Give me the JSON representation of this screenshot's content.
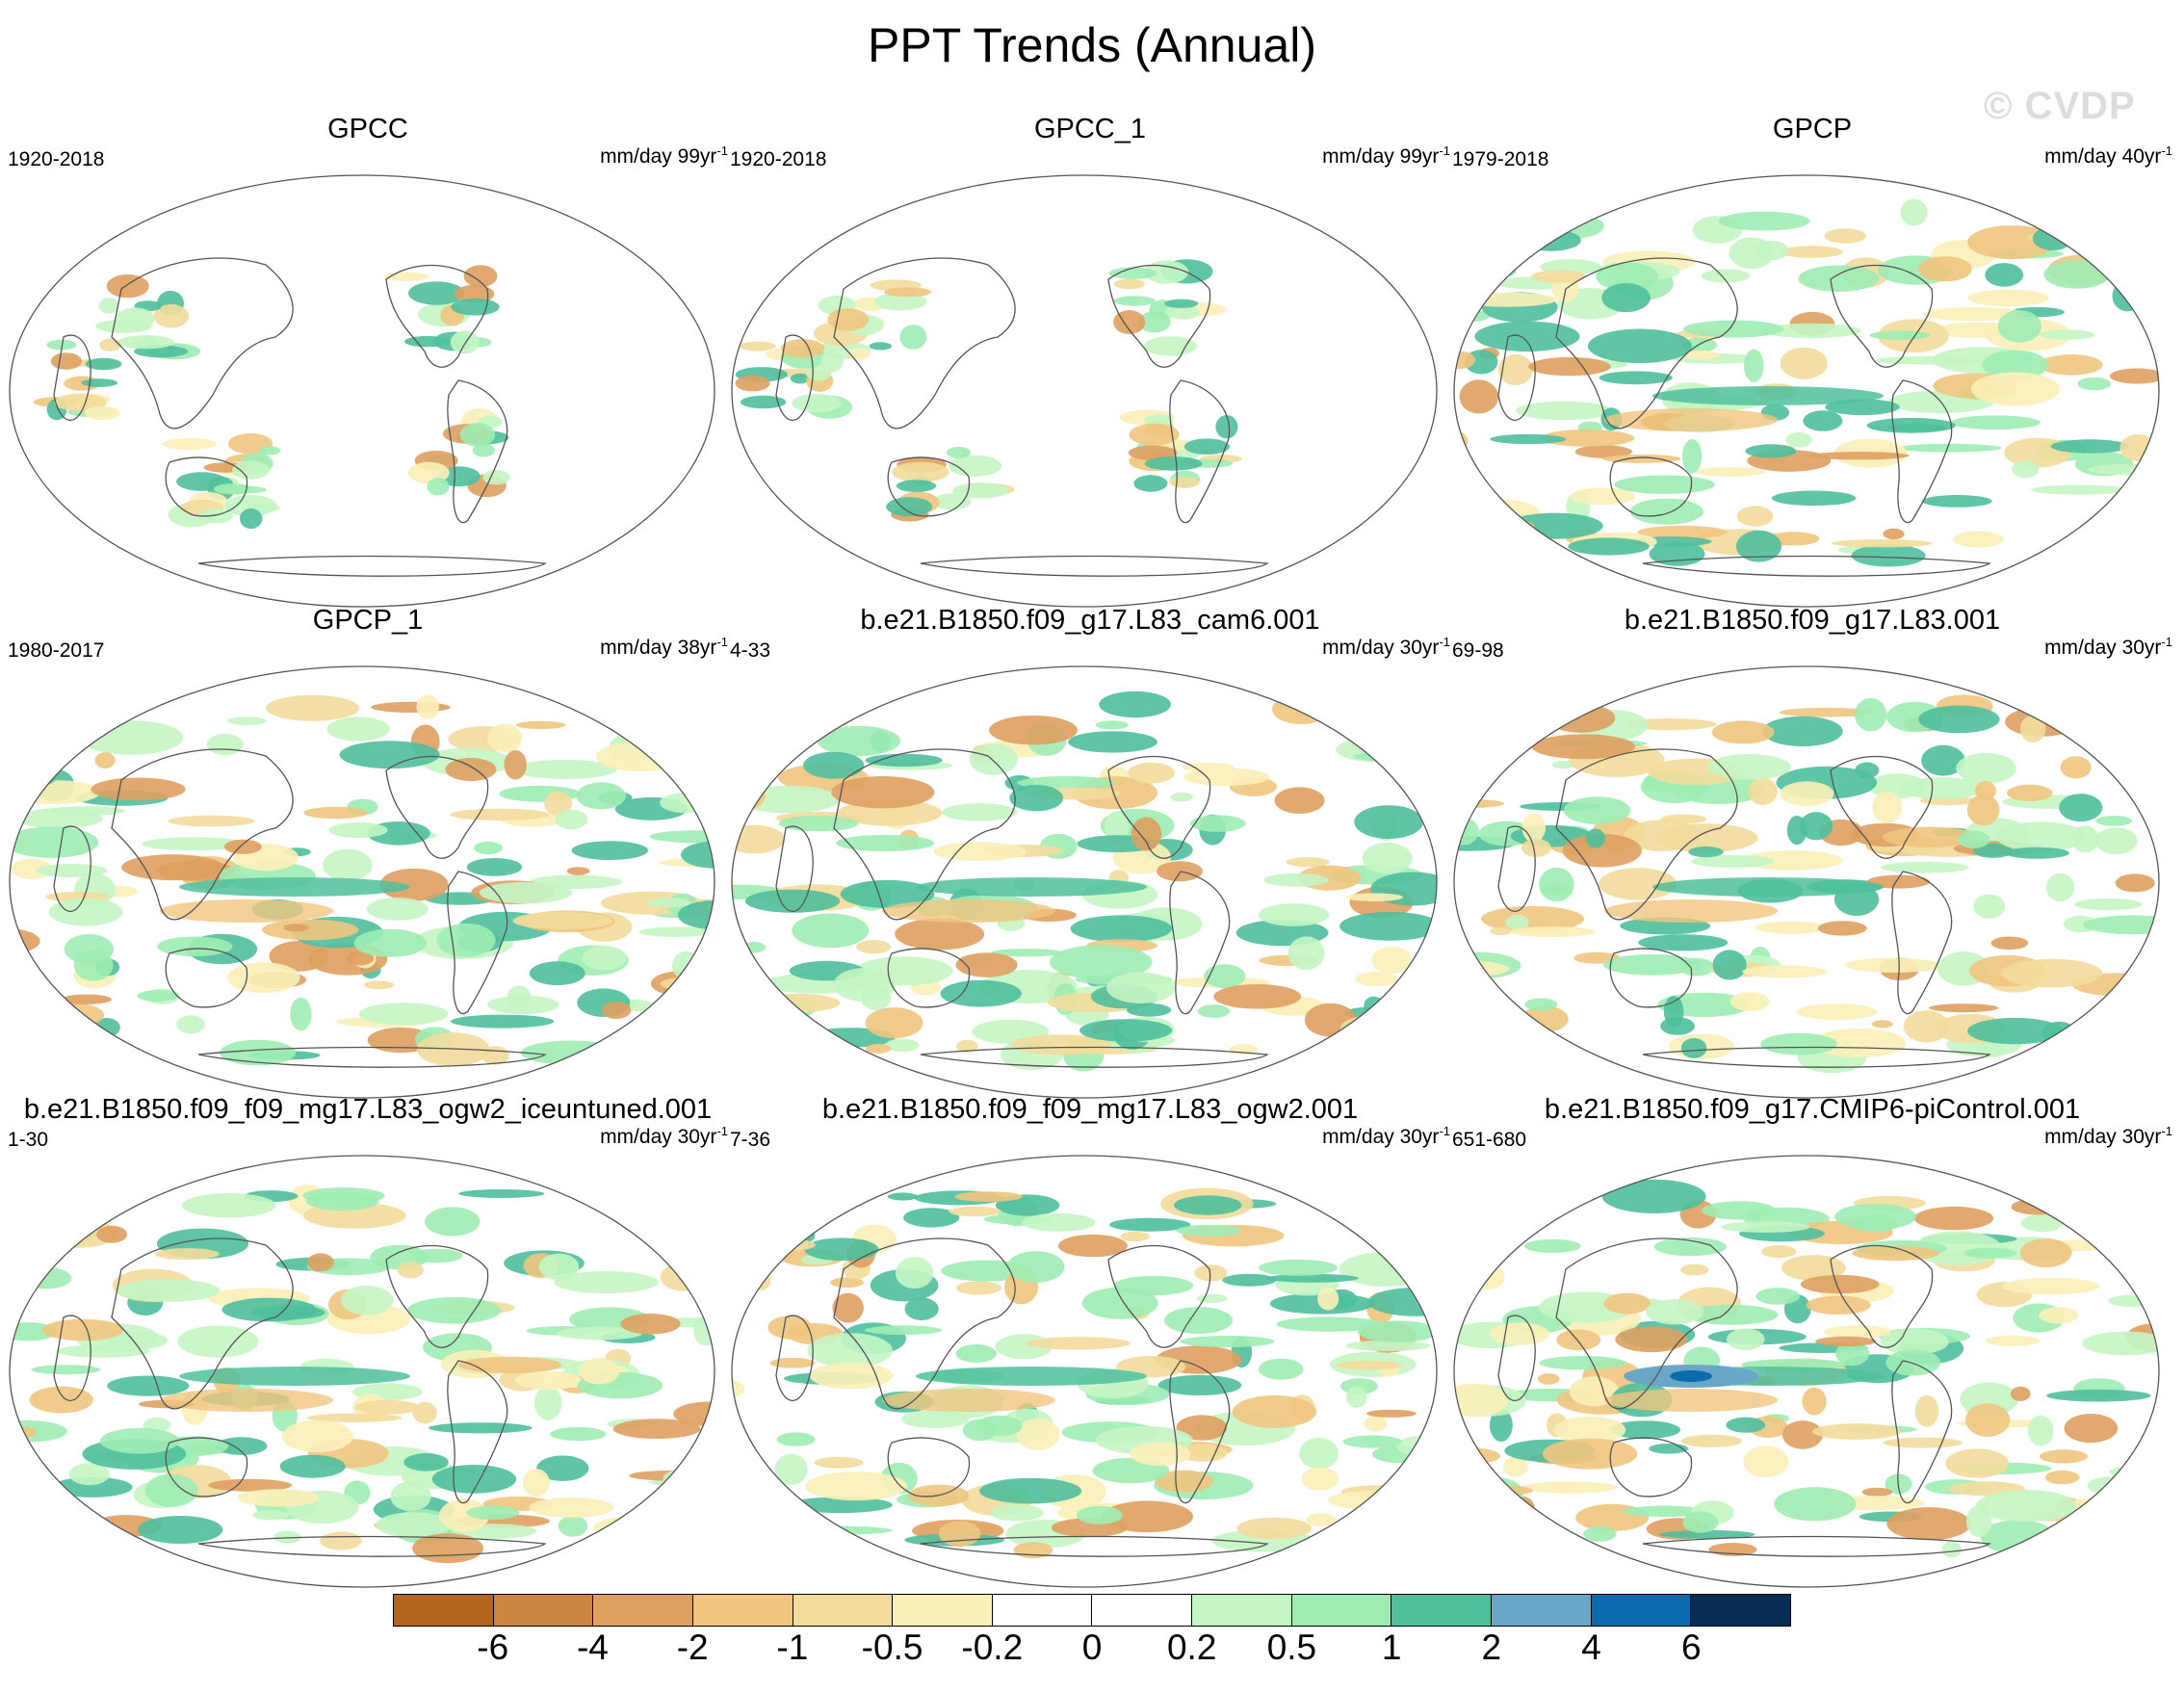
{
  "title": "PPT Trends (Annual)",
  "watermark": "© CVDP",
  "chart_data": {
    "type": "heatmap",
    "title": "PPT Trends (Annual)",
    "projection": "Robinson-like global map, Pacific-centered",
    "units": "mm/day",
    "panels": [
      {
        "title": "GPCC",
        "period": "1920-2018",
        "units_label": "mm/day 99yr",
        "superscript": "-1",
        "pattern": "land-only weak trends; wetting over N Eurasia, drying in Sahel and eastern S America"
      },
      {
        "title": "GPCC_1",
        "period": "1920-2018",
        "units_label": "mm/day 99yr",
        "superscript": "-1",
        "pattern": "land-only weak trends; nearly identical to GPCC"
      },
      {
        "title": "GPCP",
        "period": "1979-2018",
        "units_label": "mm/day 40yr",
        "superscript": "-1",
        "pattern": "La Nina-like: wetting west Pacific/Indian Ocean, drying central Pacific"
      },
      {
        "title": "GPCP_1",
        "period": "1980-2017",
        "units_label": "mm/day 38yr",
        "superscript": "-1",
        "pattern": "La Nina-like: wetting west Pacific/Indian Ocean, drying central Pacific"
      },
      {
        "title": "b.e21.B1850.f09_g17.L83_cam6.001",
        "period": "4-33",
        "units_label": "mm/day 30yr",
        "superscript": "-1",
        "pattern": "wetting band along equatorial Pacific, mixed elsewhere"
      },
      {
        "title": "b.e21.B1850.f09_g17.L83.001",
        "period": "69-98",
        "units_label": "mm/day 30yr",
        "superscript": "-1",
        "pattern": "wetting maritime continent, drying west of it"
      },
      {
        "title": "b.e21.B1850.f09_f09_mg17.L83_ogw2_iceuntuned.001",
        "period": "1-30",
        "units_label": "mm/day 30yr",
        "superscript": "-1",
        "pattern": "wetting equatorial central Pacific, drying SPCZ"
      },
      {
        "title": "b.e21.B1850.f09_f09_mg17.L83_ogw2.001",
        "period": "7-36",
        "units_label": "mm/day 30yr",
        "superscript": "-1",
        "pattern": "drying west Pacific/Indian Ocean north, wetting south"
      },
      {
        "title": "b.e21.B1850.f09_g17.CMIP6-piControl.001",
        "period": "651-680",
        "units_label": "mm/day 30yr",
        "superscript": "-1",
        "pattern": "El Nino-like strong wetting central/west equatorial Pacific"
      }
    ],
    "colorbar": {
      "labels": [
        "-6",
        "-4",
        "-2",
        "-1",
        "-0.5",
        "-0.2",
        "0",
        "0.2",
        "0.5",
        "1",
        "2",
        "4",
        "6"
      ],
      "colors": [
        "#b5651d",
        "#cc8540",
        "#dea060",
        "#f0c580",
        "#f2dc9c",
        "#fbf0b8",
        "#ffffff",
        "#ffffff",
        "#c4f5c4",
        "#9eecb4",
        "#4fbf9c",
        "#6aa6c8",
        "#0a6bad",
        "#062e52"
      ]
    }
  }
}
